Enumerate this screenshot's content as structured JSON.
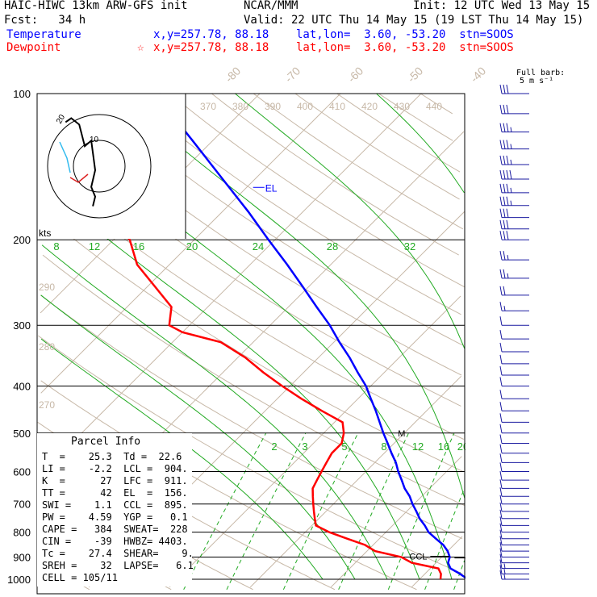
{
  "header": {
    "title_left": "HAIC-HIWC 13km ARW-GFS init",
    "title_center": "NCAR/MMM",
    "init": "Init: 12 UTC Wed 13 May 15",
    "fcst": "Fcst:   34 h",
    "valid": "Valid: 22 UTC Thu 14 May 15 (19 LST Thu 14 May 15)",
    "temperature_label": "Temperature",
    "dewpoint_label": "Dewpoint",
    "temp_info": "x,y=257.78, 88.18    lat,lon=  3.60, -53.20  stn=SOOS",
    "dew_info": "x,y=257.78, 88.18    lat,lon=  3.60, -53.20  stn=SOOS",
    "dew_marker": "☆"
  },
  "barb_header": {
    "line1": "Full barb:",
    "line2": "5 m s⁻¹"
  },
  "hodograph": {
    "kts_label": "kts",
    "ring_labels": [
      "10",
      "20"
    ]
  },
  "parcel_info": {
    "title": "Parcel Info",
    "rows": [
      "T  =    25.3  Td =  22.6",
      "LI =    -2.2  LCL =  904.",
      "K  =      27  LFC =  911.",
      "TT =      42  EL  =  156.",
      "SWI =    1.1  CCL =  895.",
      "PW =    4.59  YGP =   0.1",
      "CAPE =   384  SWEAT=  228",
      "CIN =    -39  HWBZ= 4403.",
      "Tc =    27.4  SHEAR=    9.",
      "SREH =    32  LAPSE=   6.1",
      "CELL = 105/11"
    ]
  },
  "chart_data": {
    "type": "line",
    "title": "HAIC-HIWC 13km ARW-GFS init",
    "pressure_levels": [
      100,
      200,
      300,
      400,
      500,
      600,
      700,
      800,
      900,
      1000
    ],
    "pressure_labels": [
      "100",
      "200",
      "300",
      "400",
      "500",
      "600",
      "700",
      "800",
      "900",
      "1000"
    ],
    "isotherm_labels": [
      "-80",
      "-70",
      "-60",
      "-50",
      "-40",
      "-30",
      "-20",
      "-10",
      "0",
      "10",
      "20",
      "30",
      "40"
    ],
    "dry_adiabat_labels": [
      "370",
      "380",
      "390",
      "400",
      "410",
      "420",
      "430",
      "440"
    ],
    "theta_side_labels": [
      "290",
      "280",
      "270"
    ],
    "moist_adiabat_labels": [
      "8",
      "12",
      "16",
      "20",
      "24",
      "28",
      "32"
    ],
    "mixing_ratio_labels": [
      "2",
      "3",
      "5",
      "8",
      "12",
      "16",
      "20",
      "24"
    ],
    "level_markers": [
      {
        "name": "EL",
        "label": "EL"
      },
      {
        "name": "CCL",
        "label": "CCL"
      },
      {
        "name": "LCL",
        "label": "LCL"
      },
      {
        "name": "LFC",
        "label": "LFC"
      },
      {
        "name": "M",
        "label": "M"
      }
    ],
    "series": [
      {
        "name": "Temperature",
        "color": "#0000ff"
      },
      {
        "name": "Dewpoint",
        "color": "#ff0000"
      }
    ],
    "temperature_profile": [
      [
        1000,
        26.0
      ],
      [
        970,
        24.0
      ],
      [
        950,
        22.5
      ],
      [
        925,
        21.5
      ],
      [
        900,
        21.0
      ],
      [
        875,
        20.0
      ],
      [
        850,
        18.7
      ],
      [
        825,
        17.0
      ],
      [
        800,
        15.3
      ],
      [
        775,
        14.0
      ],
      [
        750,
        12.5
      ],
      [
        725,
        11.2
      ],
      [
        700,
        9.8
      ],
      [
        675,
        8.5
      ],
      [
        650,
        6.9
      ],
      [
        625,
        5.5
      ],
      [
        600,
        4.0
      ],
      [
        575,
        2.6
      ],
      [
        550,
        0.9
      ],
      [
        525,
        -0.8
      ],
      [
        500,
        -2.6
      ],
      [
        475,
        -4.4
      ],
      [
        450,
        -6.3
      ],
      [
        425,
        -8.4
      ],
      [
        400,
        -10.6
      ],
      [
        375,
        -13.3
      ],
      [
        350,
        -16.1
      ],
      [
        325,
        -19.3
      ],
      [
        300,
        -22.6
      ],
      [
        275,
        -26.5
      ],
      [
        250,
        -30.7
      ],
      [
        225,
        -35.4
      ],
      [
        200,
        -40.8
      ],
      [
        175,
        -46.8
      ],
      [
        150,
        -54.0
      ],
      [
        125,
        -62.5
      ],
      [
        110,
        -68.5
      ],
      [
        100,
        -72.5
      ]
    ],
    "dewpoint_profile": [
      [
        1000,
        22.6
      ],
      [
        975,
        22.0
      ],
      [
        950,
        21.0
      ],
      [
        925,
        17.0
      ],
      [
        900,
        15.0
      ],
      [
        875,
        11.0
      ],
      [
        850,
        9.0
      ],
      [
        825,
        6.0
      ],
      [
        800,
        3.0
      ],
      [
        775,
        0.5
      ],
      [
        750,
        -0.5
      ],
      [
        725,
        -1.5
      ],
      [
        700,
        -2.5
      ],
      [
        675,
        -3.5
      ],
      [
        650,
        -4.5
      ],
      [
        625,
        -5.0
      ],
      [
        600,
        -5.5
      ],
      [
        575,
        -6.0
      ],
      [
        550,
        -6.5
      ],
      [
        525,
        -6.5
      ],
      [
        500,
        -7.5
      ],
      [
        475,
        -9.0
      ],
      [
        450,
        -13.0
      ],
      [
        425,
        -17.0
      ],
      [
        400,
        -21.0
      ],
      [
        375,
        -25.0
      ],
      [
        350,
        -29.0
      ],
      [
        325,
        -34.0
      ],
      [
        310,
        -40.0
      ],
      [
        300,
        -42.5
      ],
      [
        275,
        -44.5
      ],
      [
        250,
        -49.0
      ],
      [
        225,
        -54.0
      ],
      [
        200,
        -58.0
      ],
      [
        175,
        -64.0
      ],
      [
        150,
        -68.5
      ],
      [
        125,
        -71.5
      ],
      [
        110,
        -74.5
      ],
      [
        100,
        -76.5
      ]
    ],
    "hodograph_trace": [
      [
        -4.2,
        5.5
      ],
      [
        -3.5,
        6.0
      ],
      [
        -2.5,
        5.2
      ],
      [
        -1.8,
        2.5
      ],
      [
        -1.0,
        3.2
      ],
      [
        -0.5,
        -0.5
      ],
      [
        -1.0,
        -2.6
      ],
      [
        -0.5,
        -3.8
      ],
      [
        -0.8,
        -5.0
      ]
    ],
    "barbs": [
      [
        100,
        30
      ],
      [
        110,
        32
      ],
      [
        120,
        34
      ],
      [
        130,
        35
      ],
      [
        140,
        37
      ],
      [
        150,
        38
      ],
      [
        160,
        34
      ],
      [
        170,
        33
      ],
      [
        180,
        32
      ],
      [
        190,
        30
      ],
      [
        200,
        28
      ],
      [
        220,
        26
      ],
      [
        240,
        23
      ],
      [
        260,
        18
      ],
      [
        280,
        15
      ],
      [
        300,
        12
      ],
      [
        320,
        10
      ],
      [
        340,
        9
      ],
      [
        360,
        8
      ],
      [
        380,
        8
      ],
      [
        400,
        9
      ],
      [
        425,
        10
      ],
      [
        450,
        11
      ],
      [
        475,
        10
      ],
      [
        500,
        10
      ],
      [
        525,
        9
      ],
      [
        550,
        9
      ],
      [
        575,
        9
      ],
      [
        600,
        8
      ],
      [
        625,
        8
      ],
      [
        650,
        8
      ],
      [
        675,
        9
      ],
      [
        700,
        9
      ],
      [
        725,
        9
      ],
      [
        750,
        10
      ],
      [
        775,
        10
      ],
      [
        800,
        10
      ],
      [
        825,
        11
      ],
      [
        850,
        11
      ],
      [
        875,
        12
      ],
      [
        900,
        12
      ],
      [
        925,
        12
      ],
      [
        950,
        13
      ],
      [
        975,
        14
      ],
      [
        1000,
        14
      ]
    ]
  }
}
